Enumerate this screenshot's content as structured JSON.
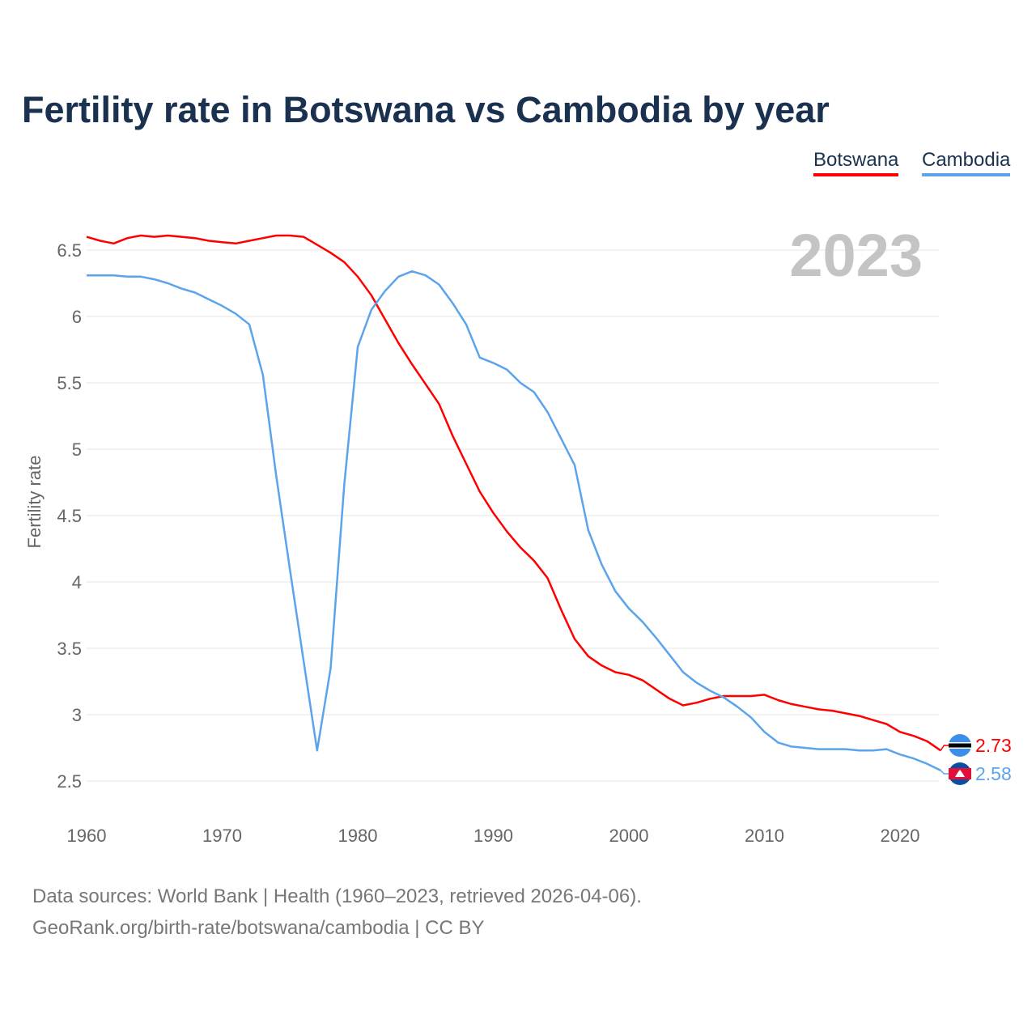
{
  "chart_data": {
    "type": "line",
    "title": "Fertility rate in Botswana vs Cambodia by year",
    "xlabel": "",
    "ylabel": "Fertility rate",
    "xlim": [
      1960,
      2023
    ],
    "ylim": [
      2.5,
      6.5
    ],
    "x_ticks": [
      "1960",
      "1970",
      "1980",
      "1990",
      "2000",
      "2010",
      "2020"
    ],
    "y_ticks": [
      "2.5",
      "3",
      "3.5",
      "4",
      "4.5",
      "5",
      "5.5",
      "6",
      "6.5"
    ],
    "year_watermark": "2023",
    "legend": [
      "Botswana",
      "Cambodia"
    ],
    "legend_position": "top-right",
    "grid": true,
    "x": [
      1960,
      1961,
      1962,
      1963,
      1964,
      1965,
      1966,
      1967,
      1968,
      1969,
      1970,
      1971,
      1972,
      1973,
      1974,
      1975,
      1976,
      1977,
      1978,
      1979,
      1980,
      1981,
      1982,
      1983,
      1984,
      1985,
      1986,
      1987,
      1988,
      1989,
      1990,
      1991,
      1992,
      1993,
      1994,
      1995,
      1996,
      1997,
      1998,
      1999,
      2000,
      2001,
      2002,
      2003,
      2004,
      2005,
      2006,
      2007,
      2008,
      2009,
      2010,
      2011,
      2012,
      2013,
      2014,
      2015,
      2016,
      2017,
      2018,
      2019,
      2020,
      2021,
      2022,
      2023
    ],
    "series": [
      {
        "name": "Botswana",
        "color": "#ff0000",
        "end_label": "2.73",
        "values": [
          6.6,
          6.57,
          6.55,
          6.59,
          6.61,
          6.6,
          6.61,
          6.6,
          6.59,
          6.57,
          6.56,
          6.55,
          6.57,
          6.59,
          6.61,
          6.61,
          6.6,
          6.54,
          6.48,
          6.41,
          6.3,
          6.16,
          5.98,
          5.8,
          5.64,
          5.49,
          5.34,
          5.1,
          4.89,
          4.68,
          4.52,
          4.38,
          4.26,
          4.16,
          4.03,
          3.79,
          3.57,
          3.44,
          3.37,
          3.32,
          3.3,
          3.26,
          3.19,
          3.12,
          3.07,
          3.09,
          3.12,
          3.14,
          3.14,
          3.14,
          3.15,
          3.11,
          3.08,
          3.06,
          3.04,
          3.03,
          3.01,
          2.99,
          2.96,
          2.93,
          2.87,
          2.84,
          2.8,
          2.73
        ]
      },
      {
        "name": "Cambodia",
        "color": "#5ba4ec",
        "end_label": "2.58",
        "values": [
          6.31,
          6.31,
          6.31,
          6.3,
          6.3,
          6.28,
          6.25,
          6.21,
          6.18,
          6.13,
          6.08,
          6.02,
          5.94,
          5.56,
          4.79,
          4.09,
          3.41,
          2.73,
          3.35,
          4.73,
          5.77,
          6.05,
          6.19,
          6.3,
          6.34,
          6.31,
          6.24,
          6.1,
          5.94,
          5.69,
          5.65,
          5.6,
          5.5,
          5.43,
          5.28,
          5.08,
          4.88,
          4.39,
          4.13,
          3.93,
          3.8,
          3.7,
          3.58,
          3.45,
          3.32,
          3.24,
          3.18,
          3.13,
          3.06,
          2.98,
          2.87,
          2.79,
          2.76,
          2.75,
          2.74,
          2.74,
          2.74,
          2.73,
          2.73,
          2.74,
          2.7,
          2.67,
          2.63,
          2.58
        ]
      }
    ]
  },
  "source_line1": "Data sources: World Bank | Health (1960–2023, retrieved 2026-04-06).",
  "source_line2": "GeoRank.org/birth-rate/botswana/cambodia | CC BY"
}
